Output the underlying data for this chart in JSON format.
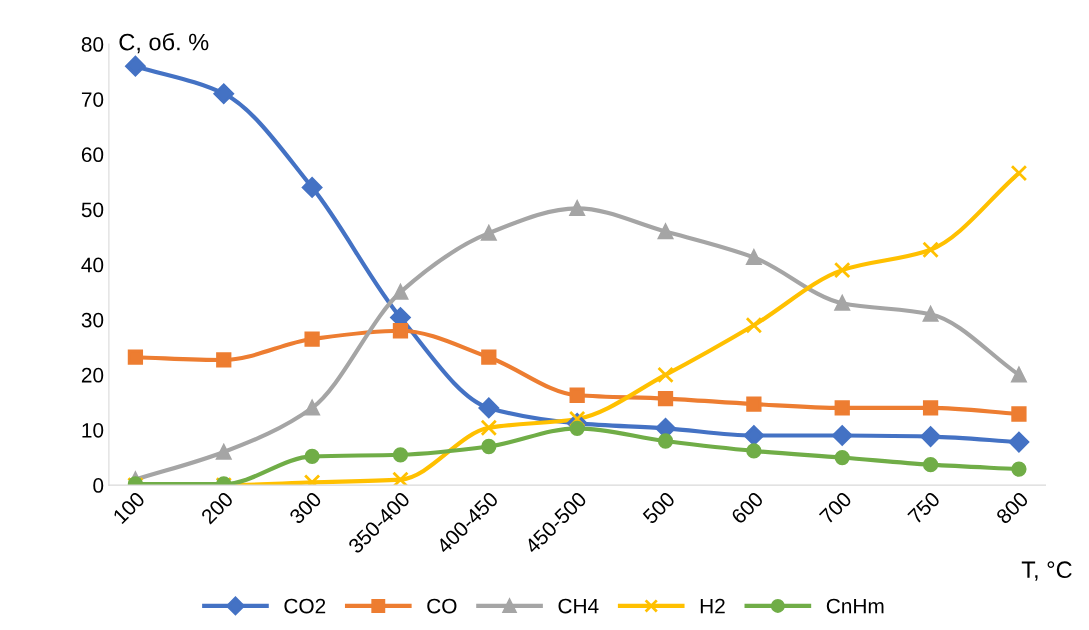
{
  "chart_data": {
    "type": "line",
    "xlabel": "T, °C",
    "ylabel": "C, об. %",
    "categories": [
      "100",
      "200",
      "300",
      "350-400",
      "400-450",
      "450-500",
      "500",
      "600",
      "700",
      "750",
      "800"
    ],
    "ylim": [
      0,
      80
    ],
    "yticks": [
      0,
      10,
      20,
      30,
      40,
      50,
      60,
      70,
      80
    ],
    "grid": false,
    "legend": "bottom",
    "series": [
      {
        "name": "CO2",
        "color": "#4472c4",
        "marker": "diamond",
        "values": [
          76,
          71,
          54,
          30.4,
          14,
          11.2,
          10.3,
          9,
          9,
          8.8,
          7.8
        ]
      },
      {
        "name": "CO",
        "color": "#ed7d31",
        "marker": "square",
        "values": [
          23.2,
          22.7,
          26.5,
          28,
          23.2,
          16.3,
          15.7,
          14.7,
          14,
          14,
          12.9
        ]
      },
      {
        "name": "CH4",
        "color": "#a5a5a5",
        "marker": "triangle",
        "values": [
          1,
          6,
          14,
          35,
          45.7,
          50.2,
          46,
          41.3,
          33,
          31,
          20
        ]
      },
      {
        "name": "H2",
        "color": "#ffc000",
        "marker": "cross",
        "values": [
          0,
          0,
          0.5,
          1,
          10.4,
          12,
          20,
          29,
          39,
          42.7,
          56.6
        ]
      },
      {
        "name": "CnHm",
        "color": "#70ad47",
        "marker": "circle",
        "values": [
          0.2,
          0.2,
          5.2,
          5.5,
          7,
          10.3,
          8,
          6.2,
          5,
          3.7,
          2.9
        ]
      }
    ]
  }
}
